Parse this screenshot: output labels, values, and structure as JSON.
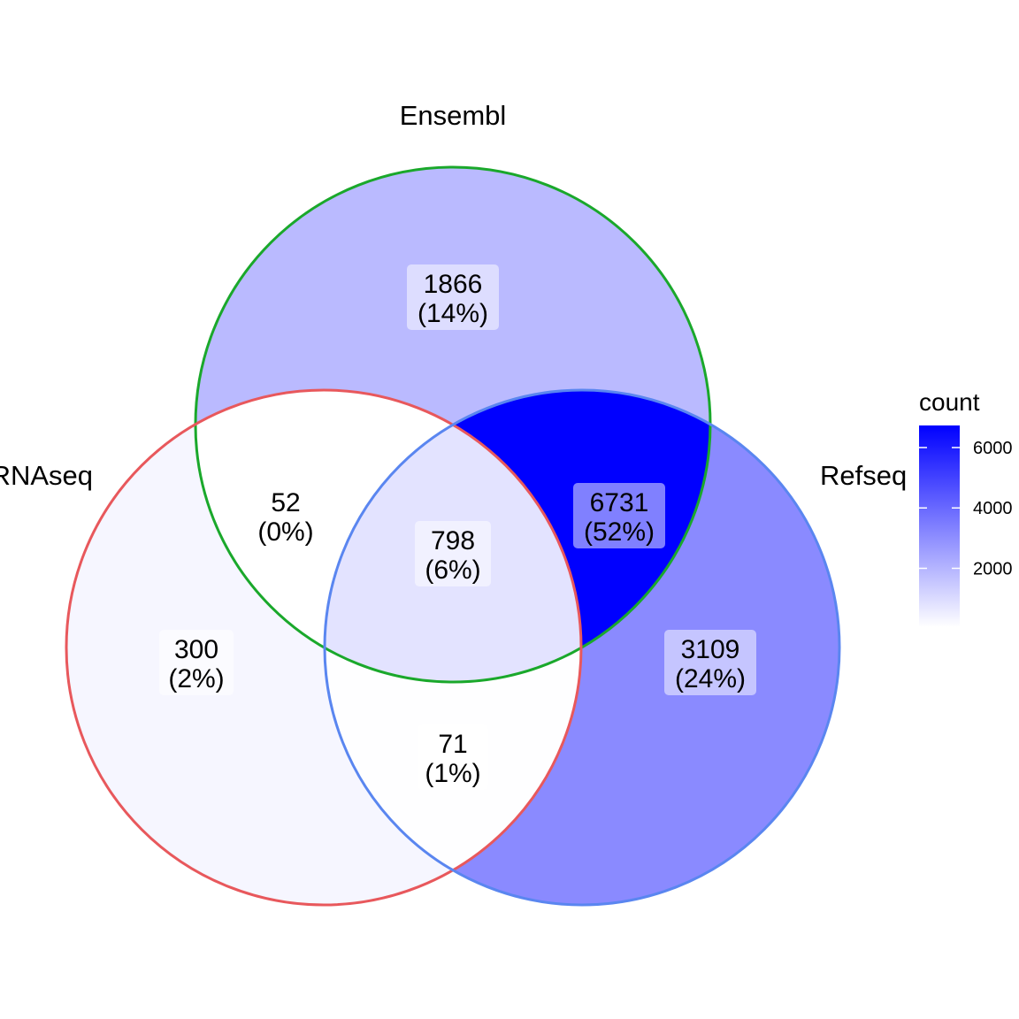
{
  "chart_data": {
    "type": "venn",
    "sets": [
      {
        "name": "Ensembl",
        "outline_color": "#1aa82b"
      },
      {
        "name": "RNAseq",
        "outline_color": "#e8585c"
      },
      {
        "name": "Refseq",
        "outline_color": "#5a86f0"
      }
    ],
    "regions": [
      {
        "sets": [
          "Ensembl"
        ],
        "count": "1866",
        "percent": "(14%)",
        "value": 1866
      },
      {
        "sets": [
          "RNAseq",
          "Ensembl"
        ],
        "count": "52",
        "percent": "(0%)",
        "value": 52
      },
      {
        "sets": [
          "RNAseq",
          "Ensembl",
          "Refseq"
        ],
        "count": "798",
        "percent": "(6%)",
        "value": 798
      },
      {
        "sets": [
          "Ensembl",
          "Refseq"
        ],
        "count": "6731",
        "percent": "(52%)",
        "value": 6731
      },
      {
        "sets": [
          "RNAseq"
        ],
        "count": "300",
        "percent": "(2%)",
        "value": 300
      },
      {
        "sets": [
          "Refseq"
        ],
        "count": "3109",
        "percent": "(24%)",
        "value": 3109
      },
      {
        "sets": [
          "RNAseq",
          "Refseq"
        ],
        "count": "71",
        "percent": "(1%)",
        "value": 71
      }
    ],
    "legend": {
      "title": "count",
      "min": 52,
      "max": 6731,
      "ticks": [
        {
          "value": 6000,
          "label": "6000"
        },
        {
          "value": 4000,
          "label": "4000"
        },
        {
          "value": 2000,
          "label": "2000"
        }
      ],
      "low_color": "#ffffff",
      "high_color": "#0000ff"
    }
  }
}
